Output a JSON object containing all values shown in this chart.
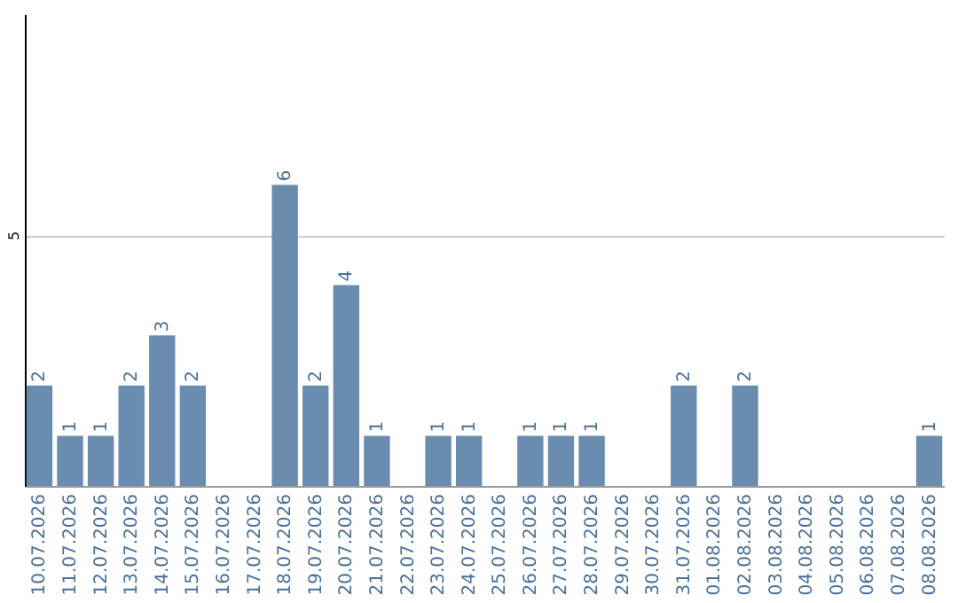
{
  "chart_data": {
    "type": "bar",
    "categories": [
      "10.07.2026",
      "11.07.2026",
      "12.07.2026",
      "13.07.2026",
      "14.07.2026",
      "15.07.2026",
      "16.07.2026",
      "17.07.2026",
      "18.07.2026",
      "19.07.2026",
      "20.07.2026",
      "21.07.2026",
      "22.07.2026",
      "23.07.2026",
      "24.07.2026",
      "25.07.2026",
      "26.07.2026",
      "27.07.2026",
      "28.07.2026",
      "29.07.2026",
      "30.07.2026",
      "31.07.2026",
      "01.08.2026",
      "02.08.2026",
      "03.08.2026",
      "04.08.2026",
      "05.08.2026",
      "06.08.2026",
      "07.08.2026",
      "08.08.2026"
    ],
    "values": [
      2,
      1,
      1,
      2,
      3,
      2,
      null,
      null,
      6,
      2,
      4,
      1,
      null,
      1,
      1,
      null,
      1,
      1,
      1,
      null,
      null,
      2,
      null,
      2,
      null,
      null,
      null,
      null,
      null,
      1
    ],
    "color": "#6a8caf",
    "ylim": [
      0,
      9.4
    ],
    "yticks": [
      5
    ],
    "grid": "y",
    "data_labels": true
  }
}
